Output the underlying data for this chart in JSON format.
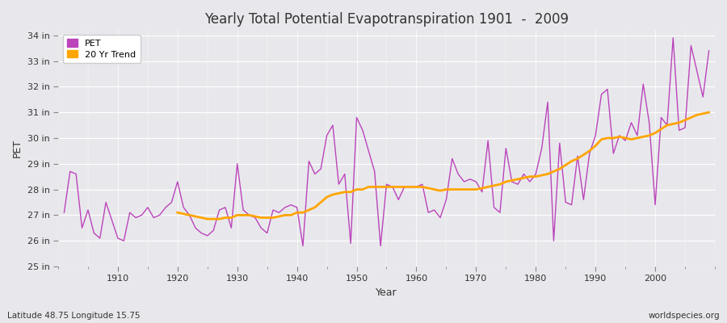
{
  "title": "Yearly Total Potential Evapotranspiration 1901  -  2009",
  "xlabel": "Year",
  "ylabel": "PET",
  "subtitle": "Latitude 48.75 Longitude 15.75",
  "watermark": "worldspecies.org",
  "pet_color": "#BB44BB",
  "trend_color": "#FFA500",
  "background_color": "#E8E8EC",
  "grid_color": "#FFFFFF",
  "ylim": [
    25,
    34.2
  ],
  "ytick_labels": [
    "25 in",
    "26 in",
    "27 in",
    "28 in",
    "29 in",
    "30 in",
    "31 in",
    "32 in",
    "33 in",
    "34 in"
  ],
  "ytick_values": [
    25,
    26,
    27,
    28,
    29,
    30,
    31,
    32,
    33,
    34
  ],
  "years": [
    1901,
    1902,
    1903,
    1904,
    1905,
    1906,
    1907,
    1908,
    1909,
    1910,
    1911,
    1912,
    1913,
    1914,
    1915,
    1916,
    1917,
    1918,
    1919,
    1920,
    1921,
    1922,
    1923,
    1924,
    1925,
    1926,
    1927,
    1928,
    1929,
    1930,
    1931,
    1932,
    1933,
    1934,
    1935,
    1936,
    1937,
    1938,
    1939,
    1940,
    1941,
    1942,
    1943,
    1944,
    1945,
    1946,
    1947,
    1948,
    1949,
    1950,
    1951,
    1952,
    1953,
    1954,
    1955,
    1956,
    1957,
    1958,
    1959,
    1960,
    1961,
    1962,
    1963,
    1964,
    1965,
    1966,
    1967,
    1968,
    1969,
    1970,
    1971,
    1972,
    1973,
    1974,
    1975,
    1976,
    1977,
    1978,
    1979,
    1980,
    1981,
    1982,
    1983,
    1984,
    1985,
    1986,
    1987,
    1988,
    1989,
    1990,
    1991,
    1992,
    1993,
    1994,
    1995,
    1996,
    1997,
    1998,
    1999,
    2000,
    2001,
    2002,
    2003,
    2004,
    2005,
    2006,
    2007,
    2008,
    2009
  ],
  "pet_values": [
    27.1,
    28.7,
    28.6,
    26.5,
    27.2,
    26.3,
    26.1,
    27.5,
    26.8,
    26.1,
    26.0,
    27.1,
    26.9,
    27.0,
    27.3,
    26.9,
    27.0,
    27.3,
    27.5,
    28.3,
    27.3,
    27.0,
    26.5,
    26.3,
    26.2,
    26.4,
    27.2,
    27.3,
    26.5,
    29.0,
    27.2,
    27.0,
    26.9,
    26.5,
    26.3,
    27.2,
    27.1,
    27.3,
    27.4,
    27.3,
    25.8,
    29.1,
    28.6,
    28.8,
    30.1,
    30.5,
    28.2,
    28.6,
    25.9,
    30.8,
    30.3,
    29.5,
    28.7,
    25.8,
    28.2,
    28.1,
    27.6,
    28.1,
    28.1,
    28.1,
    28.2,
    27.1,
    27.2,
    26.9,
    27.6,
    29.2,
    28.6,
    28.3,
    28.4,
    28.3,
    27.9,
    29.9,
    27.3,
    27.1,
    29.6,
    28.3,
    28.2,
    28.6,
    28.3,
    28.6,
    29.6,
    31.4,
    26.0,
    29.8,
    27.5,
    27.4,
    29.3,
    27.6,
    29.4,
    30.1,
    31.7,
    31.9,
    29.4,
    30.1,
    29.9,
    30.6,
    30.1,
    32.1,
    30.6,
    27.4,
    30.8,
    30.5,
    33.9,
    30.3,
    30.4,
    33.6,
    32.6,
    31.6,
    33.4
  ],
  "trend_years": [
    1920,
    1921,
    1922,
    1923,
    1924,
    1925,
    1926,
    1927,
    1928,
    1929,
    1930,
    1931,
    1932,
    1933,
    1934,
    1935,
    1936,
    1937,
    1938,
    1939,
    1940,
    1941,
    1942,
    1943,
    1944,
    1945,
    1946,
    1947,
    1948,
    1949,
    1950,
    1951,
    1952,
    1953,
    1954,
    1955,
    1956,
    1957,
    1958,
    1959,
    1960,
    1961,
    1962,
    1963,
    1964,
    1965,
    1966,
    1967,
    1968,
    1969,
    1970,
    1971,
    1972,
    1973,
    1974,
    1975,
    1976,
    1977,
    1978,
    1979,
    1980,
    1981,
    1982,
    1983,
    1984,
    1985,
    1986,
    1987,
    1988,
    1989,
    1990,
    1991,
    1992,
    1993,
    1994,
    1995,
    1996,
    1997,
    1998,
    1999,
    2000,
    2001,
    2002,
    2003,
    2004,
    2005,
    2006,
    2007,
    2008,
    2009
  ],
  "trend_values": [
    27.1,
    27.05,
    27.0,
    26.95,
    26.9,
    26.85,
    26.85,
    26.85,
    26.9,
    26.9,
    27.0,
    27.0,
    27.0,
    26.95,
    26.9,
    26.9,
    26.9,
    26.95,
    27.0,
    27.0,
    27.1,
    27.1,
    27.2,
    27.3,
    27.5,
    27.7,
    27.8,
    27.85,
    27.9,
    27.9,
    28.0,
    28.0,
    28.1,
    28.1,
    28.1,
    28.1,
    28.1,
    28.1,
    28.1,
    28.1,
    28.1,
    28.1,
    28.05,
    28.0,
    27.95,
    28.0,
    28.0,
    28.0,
    28.0,
    28.0,
    28.0,
    28.05,
    28.1,
    28.15,
    28.2,
    28.3,
    28.35,
    28.4,
    28.45,
    28.5,
    28.5,
    28.55,
    28.6,
    28.7,
    28.8,
    28.95,
    29.1,
    29.2,
    29.35,
    29.5,
    29.7,
    29.95,
    30.0,
    30.0,
    30.05,
    30.0,
    29.95,
    30.0,
    30.05,
    30.1,
    30.2,
    30.35,
    30.5,
    30.55,
    30.6,
    30.7,
    30.8,
    30.9,
    30.95,
    31.0
  ]
}
